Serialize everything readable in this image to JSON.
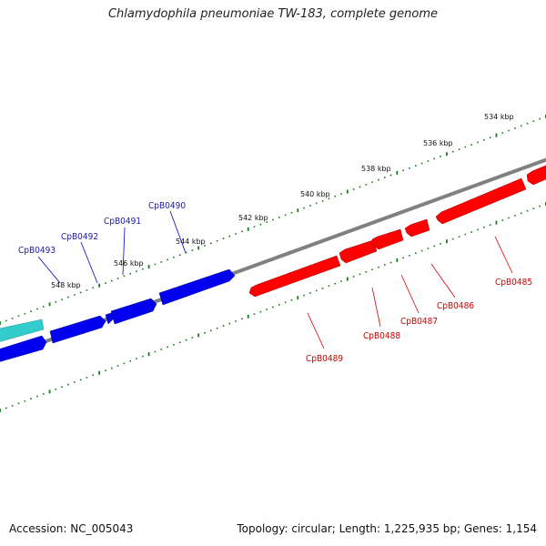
{
  "title": "Chlamydophila pneumoniae TW-183, complete genome",
  "footer": {
    "accession": "Accession: NC_005043",
    "summary": "Topology: circular; Length: 1,225,935 bp; Genes: 1,154"
  },
  "colors": {
    "forward": "#ff0000",
    "reverse": "#0000ff",
    "cyan": "#33cccc",
    "backbone": "#808080",
    "ticks": "#1a7a1a",
    "label_reverse": "#1a1aa6",
    "label_forward": "#cc0000"
  },
  "scale_labels": [
    "534 kbp",
    "536 kbp",
    "538 kbp",
    "540 kbp",
    "542 kbp",
    "544 kbp",
    "546 kbp",
    "548 kbp"
  ],
  "genes_reverse": [
    "CpB0490",
    "CpB0491",
    "CpB0492",
    "CpB0493"
  ],
  "genes_forward": [
    "CpB0485",
    "CpB0486",
    "CpB0487",
    "CpB0488",
    "CpB0489"
  ]
}
